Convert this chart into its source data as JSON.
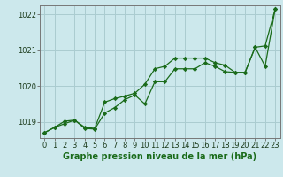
{
  "xlabel": "Graphe pression niveau de la mer (hPa)",
  "background_color": "#cce8ec",
  "grid_color": "#aaccd0",
  "line_color": "#1a6b1a",
  "marker_color": "#1a6b1a",
  "ylim": [
    1018.55,
    1022.25
  ],
  "yticks": [
    1019,
    1020,
    1021
  ],
  "ytick_extra": 1022,
  "xlim": [
    -0.5,
    23.5
  ],
  "xticks": [
    0,
    1,
    2,
    3,
    4,
    5,
    6,
    7,
    8,
    9,
    10,
    11,
    12,
    13,
    14,
    15,
    16,
    17,
    18,
    19,
    20,
    21,
    22,
    23
  ],
  "series1_x": [
    0,
    1,
    2,
    3,
    4,
    5,
    6,
    7,
    8,
    9,
    10,
    11,
    12,
    13,
    14,
    15,
    16,
    17,
    18,
    19,
    20,
    21,
    22,
    23
  ],
  "series1_y": [
    1018.7,
    1018.85,
    1018.95,
    1019.05,
    1018.85,
    1018.82,
    1019.55,
    1019.65,
    1019.72,
    1019.8,
    1020.05,
    1020.48,
    1020.55,
    1020.78,
    1020.78,
    1020.78,
    1020.78,
    1020.65,
    1020.58,
    1020.38,
    1020.38,
    1021.08,
    1020.55,
    1022.15
  ],
  "series2_x": [
    0,
    1,
    2,
    3,
    4,
    5,
    6,
    7,
    8,
    9,
    10,
    11,
    12,
    13,
    14,
    15,
    16,
    17,
    18,
    19,
    20,
    21,
    22,
    23
  ],
  "series2_y": [
    1018.7,
    1018.85,
    1019.02,
    1019.05,
    1018.82,
    1018.8,
    1019.25,
    1019.4,
    1019.62,
    1019.75,
    1019.5,
    1020.12,
    1020.12,
    1020.48,
    1020.48,
    1020.48,
    1020.65,
    1020.55,
    1020.4,
    1020.38,
    1020.38,
    1021.08,
    1021.12,
    1022.15
  ],
  "tick_fontsize": 6.0,
  "label_fontsize": 7.0,
  "label_fontweight": "bold"
}
